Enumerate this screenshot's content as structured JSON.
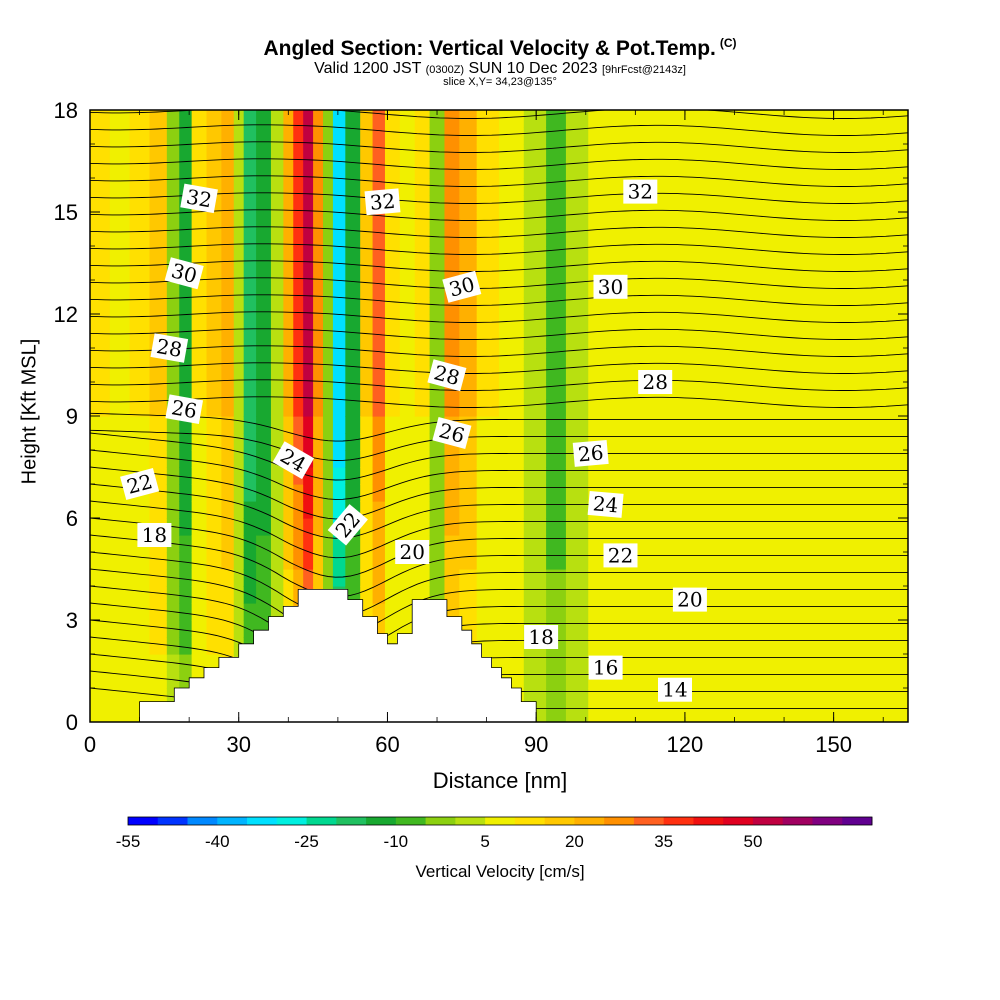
{
  "title": "Angled Section: Vertical Velocity & Pot.Temp.",
  "title_mark": "(C)",
  "subtitle_pre": "Valid 1200 JST",
  "subtitle_utc": "(0300Z)",
  "subtitle_date": "SUN 10 Dec 2023",
  "subtitle_fcst": "[9hrFcst@2143z]",
  "slice_text": "slice X,Y= 34,23@135°",
  "chart_data": {
    "type": "heatmap",
    "title": "Angled Section: Vertical Velocity & Pot.Temp.",
    "xlabel": "Distance [nm]",
    "ylabel": "Height [Kft MSL]",
    "xlim": [
      0,
      165
    ],
    "ylim": [
      0,
      18
    ],
    "x_ticks": [
      "0",
      "30",
      "60",
      "90",
      "120",
      "150"
    ],
    "y_ticks": [
      "0",
      "3",
      "6",
      "9",
      "12",
      "15",
      "18"
    ],
    "colorbar": {
      "label": "Vertical Velocity [cm/s]",
      "tick_labels": [
        "-55",
        "-40",
        "-25",
        "-10",
        "5",
        "20",
        "35",
        "50"
      ],
      "colors": [
        "#0000ff",
        "#0033ff",
        "#0088ff",
        "#00b4ff",
        "#00e0ff",
        "#00f0e0",
        "#00d890",
        "#20c060",
        "#18a830",
        "#40b820",
        "#8cd010",
        "#b8e010",
        "#f0f000",
        "#ffe000",
        "#ffc800",
        "#ffb000",
        "#ff9000",
        "#ff6020",
        "#ff3010",
        "#f01010",
        "#e00020",
        "#c00040",
        "#a00060",
        "#800080",
        "#600090"
      ]
    },
    "velocity_columns": [
      {
        "x": 2,
        "v": 5
      },
      {
        "x": 6,
        "v": 0
      },
      {
        "x": 10,
        "v": 5
      },
      {
        "x": 14,
        "v": 10
      },
      {
        "x": 17,
        "v": -10
      },
      {
        "x": 19,
        "v": -20
      },
      {
        "x": 22,
        "v": 5
      },
      {
        "x": 25,
        "v": 10
      },
      {
        "x": 28,
        "v": 15
      },
      {
        "x": 30,
        "v": -5
      },
      {
        "x": 32,
        "v": -25
      },
      {
        "x": 35,
        "v": -20
      },
      {
        "x": 38,
        "v": -5
      },
      {
        "x": 40,
        "v": 15
      },
      {
        "x": 42,
        "v": 30
      },
      {
        "x": 44,
        "v": 45
      },
      {
        "x": 46,
        "v": 20
      },
      {
        "x": 48,
        "v": -10
      },
      {
        "x": 50,
        "v": -40
      },
      {
        "x": 53,
        "v": -20
      },
      {
        "x": 56,
        "v": 10
      },
      {
        "x": 58,
        "v": 25
      },
      {
        "x": 61,
        "v": 5
      },
      {
        "x": 64,
        "v": 0
      },
      {
        "x": 67,
        "v": 5
      },
      {
        "x": 70,
        "v": -10
      },
      {
        "x": 73,
        "v": 20
      },
      {
        "x": 76,
        "v": 15
      },
      {
        "x": 80,
        "v": 5
      },
      {
        "x": 85,
        "v": 0
      },
      {
        "x": 90,
        "v": -5
      },
      {
        "x": 94,
        "v": -15
      },
      {
        "x": 98,
        "v": -5
      },
      {
        "x": 103,
        "v": 0
      },
      {
        "x": 110,
        "v": 0
      },
      {
        "x": 120,
        "v": 0
      },
      {
        "x": 130,
        "v": 0
      },
      {
        "x": 140,
        "v": 0
      },
      {
        "x": 150,
        "v": 0
      },
      {
        "x": 160,
        "v": 0
      }
    ],
    "terrain": [
      [
        0,
        0
      ],
      [
        10,
        0
      ],
      [
        10,
        0.6
      ],
      [
        17,
        0.6
      ],
      [
        17,
        1
      ],
      [
        20,
        1
      ],
      [
        20,
        1.3
      ],
      [
        23,
        1.3
      ],
      [
        23,
        1.6
      ],
      [
        26,
        1.6
      ],
      [
        26,
        1.9
      ],
      [
        30,
        1.9
      ],
      [
        30,
        2.3
      ],
      [
        33,
        2.3
      ],
      [
        33,
        2.7
      ],
      [
        36,
        2.7
      ],
      [
        36,
        3.1
      ],
      [
        39,
        3.1
      ],
      [
        39,
        3.4
      ],
      [
        42,
        3.4
      ],
      [
        42,
        3.9
      ],
      [
        52,
        3.9
      ],
      [
        52,
        3.6
      ],
      [
        55,
        3.6
      ],
      [
        55,
        3.1
      ],
      [
        58,
        3.1
      ],
      [
        58,
        2.6
      ],
      [
        60,
        2.6
      ],
      [
        60,
        2.3
      ],
      [
        62,
        2.3
      ],
      [
        62,
        2.6
      ],
      [
        65,
        2.6
      ],
      [
        65,
        3.6
      ],
      [
        72,
        3.6
      ],
      [
        72,
        3.1
      ],
      [
        75,
        3.1
      ],
      [
        75,
        2.7
      ],
      [
        77,
        2.7
      ],
      [
        77,
        2.3
      ],
      [
        79,
        2.3
      ],
      [
        79,
        1.9
      ],
      [
        81,
        1.9
      ],
      [
        81,
        1.6
      ],
      [
        83,
        1.6
      ],
      [
        83,
        1.3
      ],
      [
        85,
        1.3
      ],
      [
        85,
        1
      ],
      [
        87,
        1
      ],
      [
        87,
        0.6
      ],
      [
        90,
        0.6
      ],
      [
        90,
        0
      ]
    ],
    "isentrope_labels": [
      {
        "text": "32",
        "x": 22,
        "y": 15.4,
        "rot": 10
      },
      {
        "text": "32",
        "x": 59,
        "y": 15.3,
        "rot": -5
      },
      {
        "text": "32",
        "x": 111,
        "y": 15.6,
        "rot": 0
      },
      {
        "text": "30",
        "x": 19,
        "y": 13.2,
        "rot": 15
      },
      {
        "text": "30",
        "x": 75,
        "y": 12.8,
        "rot": -15
      },
      {
        "text": "30",
        "x": 105,
        "y": 12.8,
        "rot": 0
      },
      {
        "text": "28",
        "x": 16,
        "y": 11.0,
        "rot": 10
      },
      {
        "text": "28",
        "x": 72,
        "y": 10.2,
        "rot": 15
      },
      {
        "text": "28",
        "x": 114,
        "y": 10.0,
        "rot": 0
      },
      {
        "text": "26",
        "x": 19,
        "y": 9.2,
        "rot": 10
      },
      {
        "text": "26",
        "x": 73,
        "y": 8.5,
        "rot": 15
      },
      {
        "text": "26",
        "x": 101,
        "y": 7.9,
        "rot": -5
      },
      {
        "text": "24",
        "x": 41,
        "y": 7.7,
        "rot": 30
      },
      {
        "text": "24",
        "x": 104,
        "y": 6.4,
        "rot": 5
      },
      {
        "text": "22",
        "x": 10,
        "y": 7.0,
        "rot": -15
      },
      {
        "text": "22",
        "x": 52,
        "y": 5.8,
        "rot": -50
      },
      {
        "text": "22",
        "x": 107,
        "y": 4.9,
        "rot": 0
      },
      {
        "text": "20",
        "x": 65,
        "y": 5.0,
        "rot": 0
      },
      {
        "text": "20",
        "x": 121,
        "y": 3.6,
        "rot": 0
      },
      {
        "text": "18",
        "x": 13,
        "y": 5.5,
        "rot": 0
      },
      {
        "text": "18",
        "x": 91,
        "y": 2.5,
        "rot": 0
      },
      {
        "text": "16",
        "x": 104,
        "y": 1.6,
        "rot": 0
      },
      {
        "text": "14",
        "x": 118,
        "y": 0.95,
        "rot": 0
      }
    ]
  }
}
